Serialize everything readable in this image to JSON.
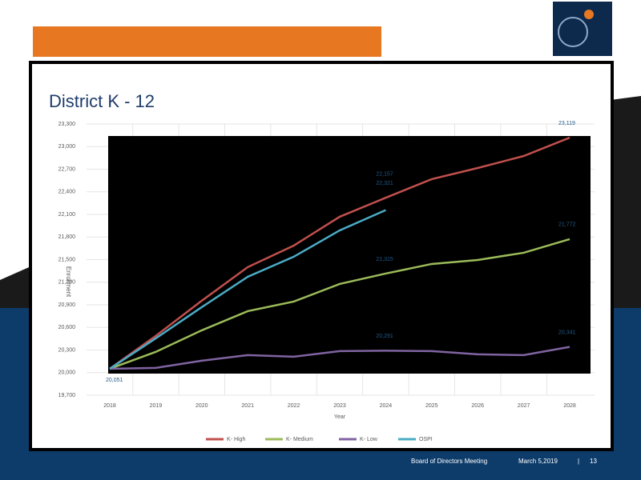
{
  "chart_data": {
    "type": "line",
    "title": "District K - 12",
    "x_label": "Year",
    "y_label": "Enrollment",
    "categories": [
      "2018",
      "2019",
      "2020",
      "2021",
      "2022",
      "2023",
      "2024",
      "2025",
      "2026",
      "2027",
      "2028"
    ],
    "series": [
      {
        "name": "K- High",
        "color": "#c0504d",
        "values": [
          20051,
          20487,
          20954,
          21400,
          21686,
          22069,
          22321,
          22568,
          22716,
          22875,
          23119
        ],
        "value_labels": [
          "20,051",
          null,
          null,
          null,
          null,
          null,
          "22,321",
          null,
          null,
          null,
          "23,119"
        ]
      },
      {
        "name": "K- Medium",
        "color": "#9bbb59",
        "values": [
          20051,
          20275,
          20561,
          20816,
          20943,
          21177,
          21315,
          21442,
          21495,
          21591,
          21772
        ],
        "value_labels": [
          null,
          null,
          null,
          null,
          null,
          null,
          "21,315",
          null,
          null,
          null,
          "21,772"
        ]
      },
      {
        "name": "K- Low",
        "color": "#8064a2",
        "values": [
          20051,
          20062,
          20158,
          20232,
          20211,
          20285,
          20291,
          20285,
          20243,
          20232,
          20341
        ],
        "value_labels": [
          null,
          null,
          null,
          null,
          null,
          null,
          "20,291",
          null,
          null,
          null,
          "20,341"
        ]
      },
      {
        "name": "OSPI",
        "color": "#4bacc6",
        "values": [
          20051,
          20455,
          20869,
          21272,
          21538,
          21888,
          22157,
          null,
          null,
          null,
          null
        ],
        "value_labels": [
          null,
          null,
          null,
          null,
          null,
          null,
          "22,157",
          null,
          null,
          null,
          null
        ]
      }
    ],
    "ylim": [
      19700,
      23300
    ],
    "yticks": [
      {
        "value": 19700,
        "label": "19,700"
      },
      {
        "value": 20000,
        "label": "20,000"
      },
      {
        "value": 20300,
        "label": "20,300"
      },
      {
        "value": 20600,
        "label": "20,600"
      },
      {
        "value": 20900,
        "label": "20,900"
      },
      {
        "value": 21200,
        "label": "21,200"
      },
      {
        "value": 21500,
        "label": "21,500"
      },
      {
        "value": 21800,
        "label": "21,800"
      },
      {
        "value": 22100,
        "label": "22,100"
      },
      {
        "value": 22400,
        "label": "22,400"
      },
      {
        "value": 22700,
        "label": "22,700"
      },
      {
        "value": 23000,
        "label": "23,000"
      },
      {
        "value": 23300,
        "label": "23,300"
      }
    ],
    "grid": true,
    "legend": "bottom"
  },
  "footer": {
    "board": "Board of Directors Meeting",
    "date": "March 5,2019",
    "separator": "|",
    "page": "13"
  }
}
